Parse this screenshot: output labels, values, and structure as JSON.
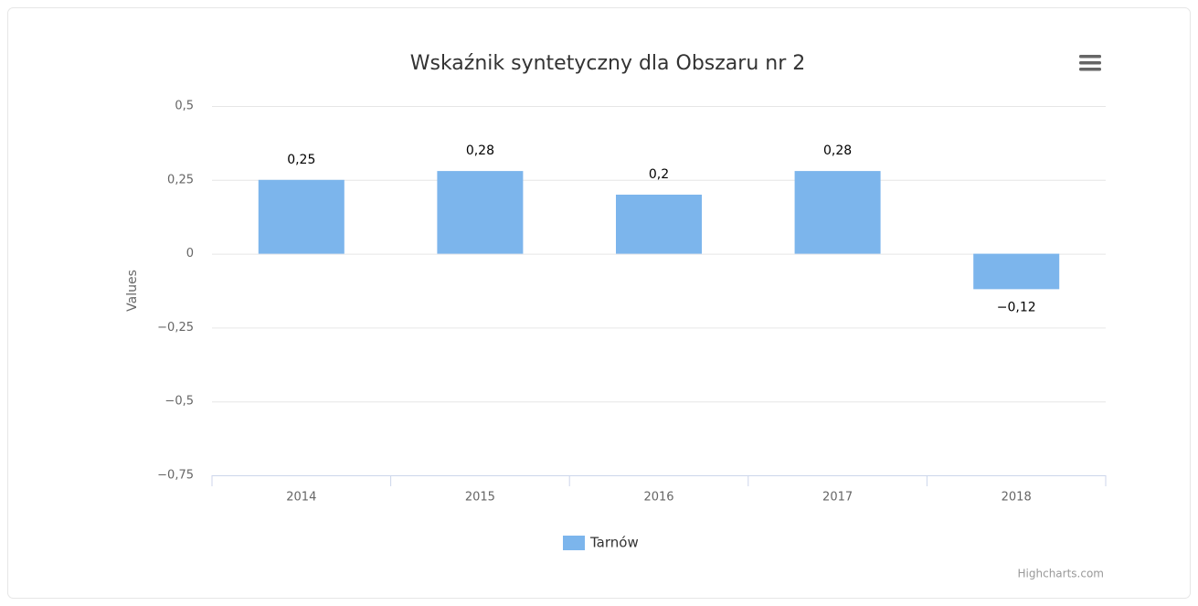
{
  "chart_data": {
    "type": "bar",
    "title": "Wskaźnik syntetyczny dla Obszaru nr 2",
    "y_axis_label": "Values",
    "categories": [
      "2014",
      "2015",
      "2016",
      "2017",
      "2018"
    ],
    "series": [
      {
        "name": "Tarnów",
        "color": "#7cb5ec",
        "values": [
          0.25,
          0.28,
          0.2,
          0.28,
          -0.12
        ],
        "value_labels": [
          "0,25",
          "0,28",
          "0,2",
          "0,28",
          "−0,12"
        ]
      }
    ],
    "ylim": [
      -0.75,
      0.5
    ],
    "yticks": [
      {
        "value": -0.75,
        "label": "−0,75"
      },
      {
        "value": -0.5,
        "label": "−0,5"
      },
      {
        "value": -0.25,
        "label": "−0,25"
      },
      0,
      {
        "value": 0.25,
        "label": "0,25"
      },
      {
        "value": 0.5,
        "label": "0,5"
      }
    ],
    "grid": true,
    "legend": "bottom",
    "credits": "Highcharts.com"
  }
}
